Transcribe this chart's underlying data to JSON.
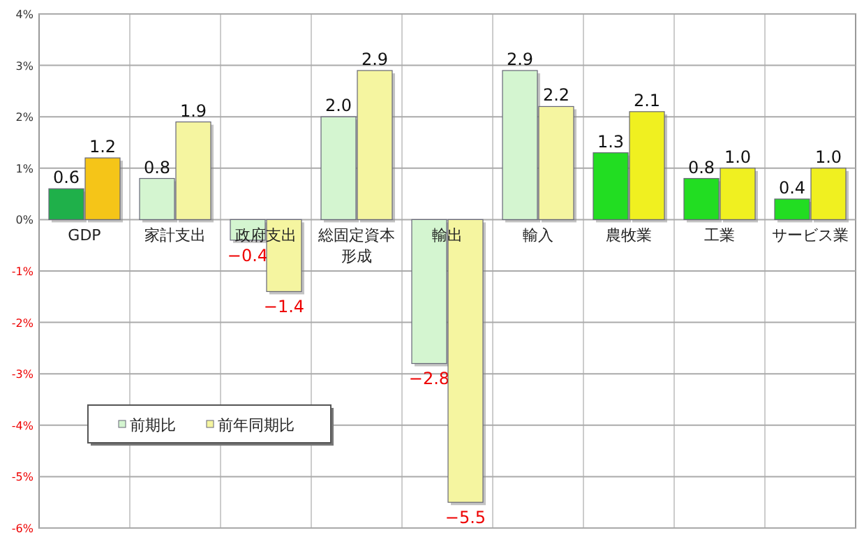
{
  "chart_data": {
    "type": "bar",
    "categories": [
      "GDP",
      "家計支出",
      "政府支出",
      "総固定資本形成",
      "輸出",
      "輸入",
      "農牧業",
      "工業",
      "サービス業"
    ],
    "series": [
      {
        "name": "前期比",
        "color": "#d4f5d0",
        "colors": [
          "#1fb04a",
          "#d4f5d0",
          "#d4f5d0",
          "#d4f5d0",
          "#d4f5d0",
          "#d4f5d0",
          "#22dd22",
          "#22dd22",
          "#22dd22"
        ],
        "values": [
          0.6,
          0.8,
          -0.4,
          2.0,
          -2.8,
          2.9,
          1.3,
          0.8,
          0.4
        ],
        "value_labels": [
          "0.6",
          "0.8",
          "−0.4",
          "2.0",
          "−2.8",
          "2.9",
          "1.3",
          "0.8",
          "0.4"
        ]
      },
      {
        "name": "前年同期比",
        "color": "#f5f5a0",
        "colors": [
          "#f5c518",
          "#f5f5a0",
          "#f5f5a0",
          "#f5f5a0",
          "#f5f5a0",
          "#f5f5a0",
          "#f0f020",
          "#f0f020",
          "#f0f020"
        ],
        "values": [
          1.2,
          1.9,
          -1.4,
          2.9,
          -5.5,
          2.2,
          2.1,
          1.0,
          1.0
        ],
        "value_labels": [
          "1.2",
          "1.9",
          "−1.4",
          "2.9",
          "−5.5",
          "2.2",
          "2.1",
          "1.0",
          "1.0"
        ]
      }
    ],
    "ylim": [
      -6,
      4
    ],
    "yticks": [
      {
        "value": -6,
        "label": "-6%"
      },
      {
        "value": -5,
        "label": "-5%"
      },
      {
        "value": -4,
        "label": "-4%"
      },
      {
        "value": -3,
        "label": "-3%"
      },
      {
        "value": -2,
        "label": "-2%"
      },
      {
        "value": -1,
        "label": "-1%"
      },
      {
        "value": 0,
        "label": "0%"
      },
      {
        "value": 1,
        "label": "1%"
      },
      {
        "value": 2,
        "label": "2%"
      },
      {
        "value": 3,
        "label": "3%"
      },
      {
        "value": 4,
        "label": "4%"
      }
    ],
    "grid": true,
    "legend": "bottom left"
  }
}
